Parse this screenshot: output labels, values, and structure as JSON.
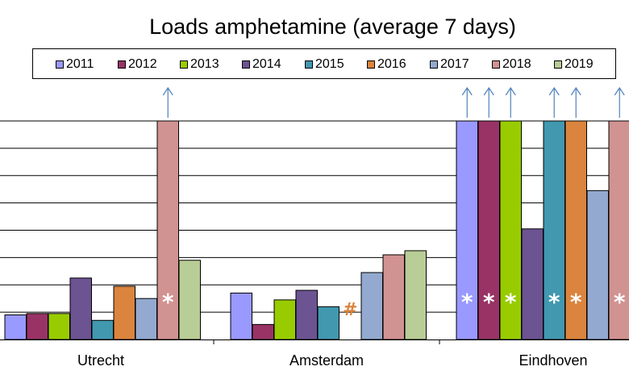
{
  "chart_data": {
    "type": "bar",
    "title": "Loads amphetamine (average 7 days)",
    "xlabel": "",
    "ylabel": "",
    "categories": [
      "Utrecht",
      "Amsterdam",
      "Eindhoven"
    ],
    "ylim": [
      0,
      8
    ],
    "grid": true,
    "legend_position": "top",
    "series": [
      {
        "name": "2011",
        "color": "#9999ff",
        "values": [
          0.9,
          1.7,
          8.0
        ],
        "offscale": [
          false,
          false,
          true
        ],
        "marker": [
          "",
          "",
          "*"
        ]
      },
      {
        "name": "2012",
        "color": "#993366",
        "values": [
          0.95,
          0.55,
          8.0
        ],
        "offscale": [
          false,
          false,
          true
        ],
        "marker": [
          "",
          "",
          "*"
        ]
      },
      {
        "name": "2013",
        "color": "#99cc00",
        "values": [
          0.95,
          1.45,
          8.0
        ],
        "offscale": [
          false,
          false,
          true
        ],
        "marker": [
          "",
          "",
          "*"
        ]
      },
      {
        "name": "2014",
        "color": "#6c5391",
        "values": [
          2.25,
          1.8,
          4.05
        ],
        "offscale": [
          false,
          false,
          false
        ],
        "marker": [
          "",
          "",
          ""
        ]
      },
      {
        "name": "2015",
        "color": "#4198af",
        "values": [
          0.7,
          1.2,
          8.0
        ],
        "offscale": [
          false,
          false,
          true
        ],
        "marker": [
          "",
          "",
          "*"
        ]
      },
      {
        "name": "2016",
        "color": "#db843d",
        "values": [
          1.95,
          null,
          8.0
        ],
        "offscale": [
          false,
          false,
          true
        ],
        "marker": [
          "",
          "#",
          "*"
        ]
      },
      {
        "name": "2017",
        "color": "#93a9cf",
        "values": [
          1.5,
          2.45,
          5.45
        ],
        "offscale": [
          false,
          false,
          false
        ],
        "marker": [
          "",
          "",
          ""
        ]
      },
      {
        "name": "2018",
        "color": "#d19392",
        "values": [
          8.0,
          3.1,
          8.0
        ],
        "offscale": [
          true,
          false,
          true
        ],
        "marker": [
          "*",
          "",
          "*"
        ]
      },
      {
        "name": "2019",
        "color": "#b9cd96",
        "values": [
          2.9,
          3.25,
          null
        ],
        "offscale": [
          false,
          false,
          false
        ],
        "marker": [
          "",
          "",
          ""
        ]
      }
    ]
  }
}
